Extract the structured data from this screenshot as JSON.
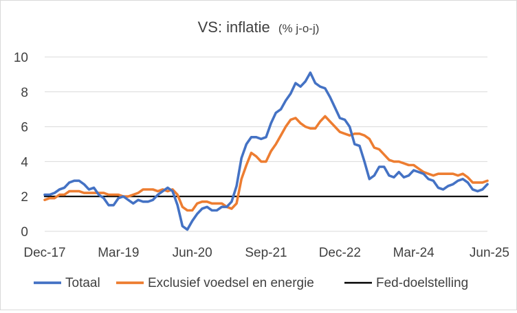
{
  "chart_data": {
    "type": "line",
    "title": "VS: inflatie",
    "title_suffix": "(% j-o-j)",
    "xlabel": "",
    "ylabel": "",
    "ylim": [
      0,
      10
    ],
    "yticks": [
      0,
      2,
      4,
      6,
      8,
      10
    ],
    "start": "Dec-17",
    "x_tick_labels": [
      "Dec-17",
      "Mar-19",
      "Jun-20",
      "Sep-21",
      "Dec-22",
      "Mar-24",
      "Jun-25"
    ],
    "legend_position": "bottom",
    "grid": true,
    "colors": {
      "totaal": "#4472c4",
      "kern": "#ed7d31",
      "fed": "#000000",
      "grid": "#d9d9d9"
    },
    "series": [
      {
        "name": "Totaal",
        "color": "#4472c4",
        "values": [
          2.1,
          2.1,
          2.2,
          2.4,
          2.5,
          2.8,
          2.9,
          2.9,
          2.7,
          2.4,
          2.5,
          2.1,
          1.9,
          1.5,
          1.5,
          1.9,
          2.0,
          1.8,
          1.6,
          1.8,
          1.7,
          1.7,
          1.8,
          2.1,
          2.3,
          2.5,
          2.3,
          1.5,
          0.3,
          0.1,
          0.6,
          1.0,
          1.3,
          1.4,
          1.2,
          1.2,
          1.4,
          1.4,
          1.7,
          2.6,
          4.2,
          5.0,
          5.4,
          5.4,
          5.3,
          5.4,
          6.2,
          6.8,
          7.0,
          7.5,
          7.9,
          8.5,
          8.3,
          8.6,
          9.1,
          8.5,
          8.3,
          8.2,
          7.7,
          7.1,
          6.5,
          6.4,
          6.0,
          5.0,
          4.9,
          4.0,
          3.0,
          3.2,
          3.7,
          3.7,
          3.2,
          3.1,
          3.4,
          3.1,
          3.2,
          3.5,
          3.4,
          3.3,
          3.0,
          2.9,
          2.5,
          2.4,
          2.6,
          2.7,
          2.9,
          3.0,
          2.8,
          2.4,
          2.3,
          2.4,
          2.7
        ]
      },
      {
        "name": "Exclusief voedsel en energie",
        "color": "#ed7d31",
        "values": [
          1.8,
          1.9,
          1.9,
          2.1,
          2.1,
          2.3,
          2.3,
          2.3,
          2.2,
          2.2,
          2.2,
          2.2,
          2.2,
          2.1,
          2.1,
          2.1,
          2.0,
          2.0,
          2.1,
          2.2,
          2.4,
          2.4,
          2.4,
          2.3,
          2.4,
          2.3,
          2.4,
          2.1,
          1.4,
          1.2,
          1.2,
          1.6,
          1.7,
          1.7,
          1.6,
          1.6,
          1.6,
          1.4,
          1.3,
          1.6,
          3.0,
          3.8,
          4.5,
          4.3,
          4.0,
          4.0,
          4.6,
          5.0,
          5.5,
          6.0,
          6.4,
          6.5,
          6.2,
          6.0,
          5.9,
          5.9,
          6.3,
          6.6,
          6.3,
          6.0,
          5.7,
          5.6,
          5.5,
          5.6,
          5.6,
          5.5,
          5.3,
          4.8,
          4.7,
          4.4,
          4.1,
          4.0,
          4.0,
          3.9,
          3.8,
          3.8,
          3.6,
          3.4,
          3.3,
          3.2,
          3.3,
          3.3,
          3.3,
          3.3,
          3.2,
          3.3,
          3.1,
          2.8,
          2.8,
          2.8,
          2.9
        ]
      },
      {
        "name": "Fed-doelstelling",
        "color": "#000000",
        "values": [
          2.0,
          2.0
        ]
      }
    ]
  }
}
